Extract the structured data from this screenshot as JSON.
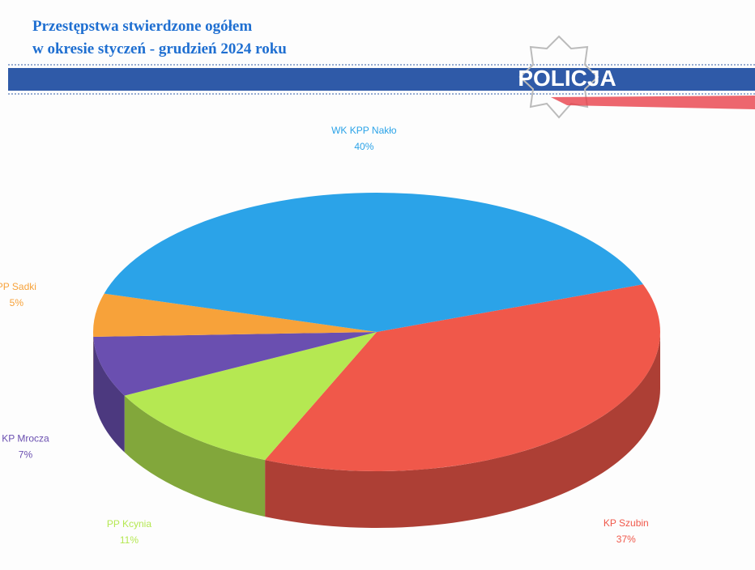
{
  "brand": "POLICJA",
  "chart_data": {
    "type": "pie",
    "title": "Przestępstwa stwierdzone ogółem",
    "subtitle": "w okresie styczeń - grudzień 2024 roku",
    "categories": [
      "KP Szubin",
      "PP Kcynia",
      "KP Mrocza",
      "PP Sadki",
      "WK KPP Nakło"
    ],
    "values": [
      37,
      11,
      7,
      5,
      40
    ],
    "value_labels": [
      "37%",
      "11%",
      "7%",
      "5%",
      "40%"
    ],
    "colors": [
      "#f0584a",
      "#b5e852",
      "#6a4fb0",
      "#f7a23a",
      "#2ba3e8"
    ]
  }
}
